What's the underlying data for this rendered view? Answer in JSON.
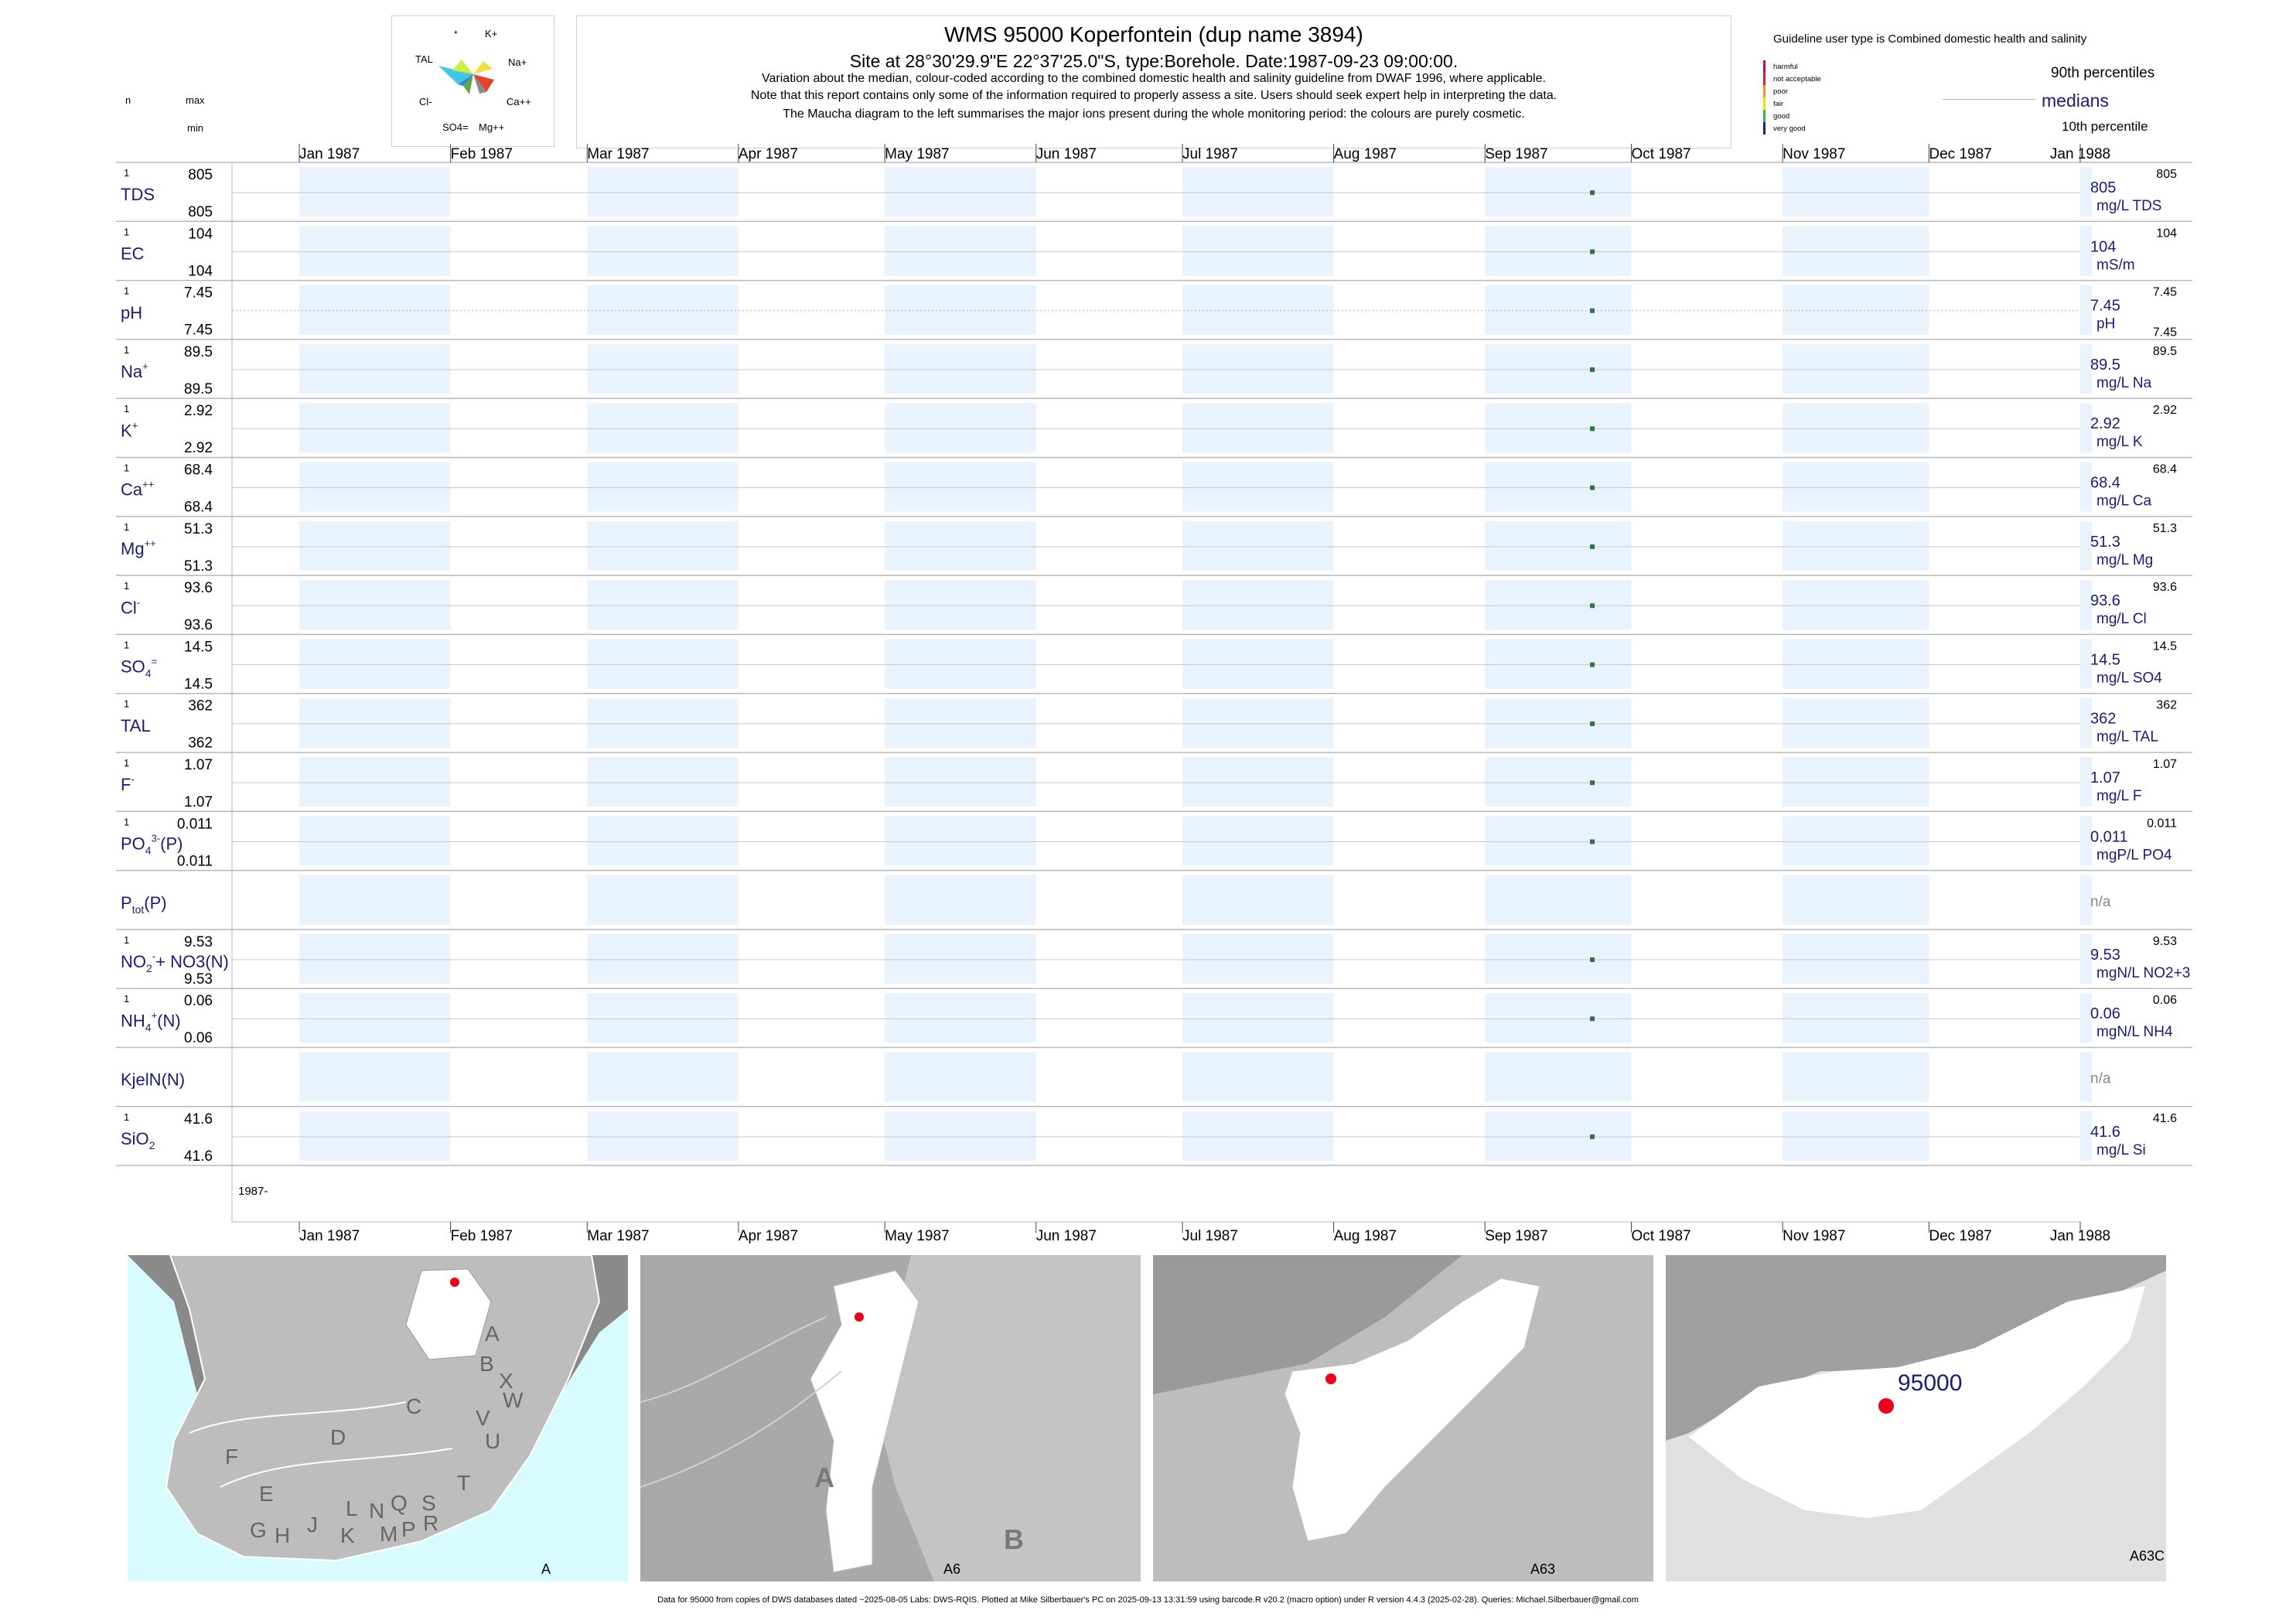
{
  "header": {
    "title": "WMS 95000  Koperfontein (dup name 3894)",
    "subtitle": "Site at 28°30'29.9\"E 22°37'25.0\"S, type:Borehole. Date:1987-09-23 09:00:00.",
    "note1": "Variation about the median,  colour-coded according to the combined domestic health and salinity guideline from DWAF 1996, where applicable.",
    "note2": "Note that this report contains only some of the information required to properly assess a site. Users should seek expert help in interpreting the data.",
    "note3": "The Maucha diagram to the left summarises the major ions present during the whole monitoring period: the colours are purely cosmetic."
  },
  "maucha": {
    "labels": [
      "*",
      "K+",
      "TAL",
      "Na+",
      "Cl-",
      "Ca++",
      "SO4=",
      "Mg++"
    ]
  },
  "left_header": {
    "n": "n",
    "max": "max",
    "min": "min"
  },
  "legend": {
    "guideline_title": "Guideline user type is Combined domestic health and salinity",
    "classes": [
      "harmful",
      "not acceptable",
      "poor",
      "fair",
      "good",
      "very good"
    ],
    "class_colors": [
      "#c8007a",
      "#e8193c",
      "#f7941d",
      "#f4e400",
      "#3cb44b",
      "#1a1aa6"
    ],
    "p90": "90th percentiles",
    "medians": "medians",
    "p10": "10th percentile"
  },
  "colors": {
    "band": "#e9f3fd",
    "point": "#3a6e4a",
    "label": "#1c1c6e",
    "grid": "#b8b8b8",
    "ph_line": "#d9a0a0"
  },
  "chart_data": {
    "type": "scatter",
    "x_range": [
      "1987-01-01",
      "1988-01-01"
    ],
    "x_ticks": [
      "Jan 1987",
      "Feb 1987",
      "Mar 1987",
      "Apr 1987",
      "May 1987",
      "Jun 1987",
      "Jul 1987",
      "Aug 1987",
      "Sep 1987",
      "Oct 1987",
      "Nov 1987",
      "Dec 1987",
      "Jan 1988"
    ],
    "sample_date": "1987-09-23",
    "year_label": "1987-",
    "series": [
      {
        "name": "TDS",
        "sup": "",
        "sub": "",
        "n": "1",
        "max": "805",
        "min": "805",
        "median": "805",
        "p90": "805",
        "p10": "",
        "unit": "mg/L TDS",
        "value": 805
      },
      {
        "name": "EC",
        "sup": "",
        "sub": "",
        "n": "1",
        "max": "104",
        "min": "104",
        "median": "104",
        "p90": "104",
        "p10": "",
        "unit": "mS/m",
        "value": 104
      },
      {
        "name": "pH",
        "sup": "",
        "sub": "",
        "n": "1",
        "max": "7.45",
        "min": "7.45",
        "median": "7.45",
        "p90": "7.45",
        "p10": "7.45",
        "unit": "pH",
        "value": 7.45
      },
      {
        "name": "Na",
        "sup": "+",
        "sub": "",
        "n": "1",
        "max": "89.5",
        "min": "89.5",
        "median": "89.5",
        "p90": "89.5",
        "p10": "",
        "unit": "mg/L Na",
        "value": 89.5
      },
      {
        "name": "K",
        "sup": "+",
        "sub": "",
        "n": "1",
        "max": "2.92",
        "min": "2.92",
        "median": "2.92",
        "p90": "2.92",
        "p10": "",
        "unit": "mg/L K",
        "value": 2.92
      },
      {
        "name": "Ca",
        "sup": "++",
        "sub": "",
        "n": "1",
        "max": "68.4",
        "min": "68.4",
        "median": "68.4",
        "p90": "68.4",
        "p10": "",
        "unit": "mg/L Ca",
        "value": 68.4
      },
      {
        "name": "Mg",
        "sup": "++",
        "sub": "",
        "n": "1",
        "max": "51.3",
        "min": "51.3",
        "median": "51.3",
        "p90": "51.3",
        "p10": "",
        "unit": "mg/L Mg",
        "value": 51.3
      },
      {
        "name": "Cl",
        "sup": "-",
        "sub": "",
        "n": "1",
        "max": "93.6",
        "min": "93.6",
        "median": "93.6",
        "p90": "93.6",
        "p10": "",
        "unit": "mg/L Cl",
        "value": 93.6
      },
      {
        "name": "SO",
        "sup": "=",
        "sub": "4",
        "n": "1",
        "max": "14.5",
        "min": "14.5",
        "median": "14.5",
        "p90": "14.5",
        "p10": "",
        "unit": "mg/L SO4",
        "value": 14.5
      },
      {
        "name": "TAL",
        "sup": "",
        "sub": "",
        "n": "1",
        "max": "362",
        "min": "362",
        "median": "362",
        "p90": "362",
        "p10": "",
        "unit": "mg/L TAL",
        "value": 362
      },
      {
        "name": "F",
        "sup": "-",
        "sub": "",
        "n": "1",
        "max": "1.07",
        "min": "1.07",
        "median": "1.07",
        "p90": "1.07",
        "p10": "",
        "unit": "mg/L F",
        "value": 1.07
      },
      {
        "name": "PO",
        "sup": "3-",
        "sub": "4",
        "suffix": "(P)",
        "n": "1",
        "max": "0.011",
        "min": "0.011",
        "median": "0.011",
        "p90": "0.011",
        "p10": "",
        "unit": "mgP/L PO4",
        "value": 0.011
      },
      {
        "name": "P",
        "sup": "",
        "sub": "tot",
        "suffix": "(P)",
        "n": "",
        "max": "",
        "min": "",
        "median": "n/a",
        "p90": "",
        "p10": "",
        "unit": "",
        "value": null
      },
      {
        "name": "NO",
        "sup": "-",
        "sub": "2",
        "suffix": "+ NO3(N)",
        "n": "1",
        "max": "9.53",
        "min": "9.53",
        "median": "9.53",
        "p90": "9.53",
        "p10": "",
        "unit": "mgN/L NO2+3",
        "value": 9.53
      },
      {
        "name": "NH",
        "sup": "+",
        "sub": "4",
        "suffix": "(N)",
        "n": "1",
        "max": "0.06",
        "min": "0.06",
        "median": "0.06",
        "p90": "0.06",
        "p10": "",
        "unit": "mgN/L NH4",
        "value": 0.06
      },
      {
        "name": "KjelN(N)",
        "sup": "",
        "sub": "",
        "n": "",
        "max": "",
        "min": "",
        "median": "n/a",
        "p90": "",
        "p10": "",
        "unit": "",
        "value": null
      },
      {
        "name": "SiO",
        "sup": "",
        "sub": "2",
        "n": "1",
        "max": "41.6",
        "min": "41.6",
        "median": "41.6",
        "p90": "41.6",
        "p10": "",
        "unit": "mg/L Si",
        "value": 41.6
      }
    ]
  },
  "maps": [
    {
      "label": "A",
      "letters": [
        "A",
        "B",
        "X",
        "C",
        "W",
        "D",
        "V",
        "U",
        "T",
        "F",
        "E",
        "G",
        "H",
        "J",
        "K",
        "L",
        "N",
        "Q",
        "M",
        "P",
        "R",
        "S"
      ]
    },
    {
      "label": "A6",
      "letters": [
        "A",
        "B"
      ]
    },
    {
      "label": "A63",
      "letters": []
    },
    {
      "label": "A63C",
      "site": "95000"
    }
  ],
  "footer": "Data for 95000 from copies of DWS databases dated ~2025-08-05 Labs: DWS-RQIS. Plotted at Mike Silberbauer's PC on 2025-09-13 13:31:59 using barcode.R v20.2 (macro option) under R version 4.4.3 (2025-02-28). Queries: Michael.Silberbauer@gmail.com"
}
